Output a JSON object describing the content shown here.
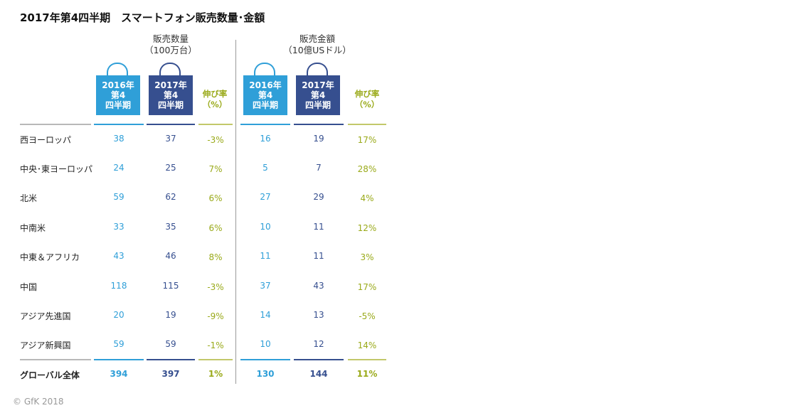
{
  "title": "2017年第4四半期　スマートフォン販売数量･金額",
  "groups": {
    "units": {
      "line1": "販売数量",
      "line2": "（100万台）"
    },
    "value": {
      "line1": "販売金額",
      "line2": "（10億USドル）"
    }
  },
  "bags": {
    "q2016": [
      "2016年",
      "第4",
      "四半期"
    ],
    "q2017": [
      "2017年",
      "第4",
      "四半期"
    ]
  },
  "growth_header": [
    "伸び率",
    "（%）"
  ],
  "colors": {
    "q2016": "#2f9fd8",
    "q2017": "#364f8f",
    "growth": "#9aaa1a",
    "divider": "#9a9a9a"
  },
  "chart_data": {
    "type": "table",
    "title": "2017年第4四半期　スマートフォン販売数量･金額",
    "columns": [
      "販売数量 2016年第4四半期",
      "販売数量 2017年第4四半期",
      "販売数量 伸び率(%)",
      "販売金額 2016年第4四半期",
      "販売金額 2017年第4四半期",
      "販売金額 伸び率(%)"
    ],
    "rows": [
      {
        "region": "西ヨーロッパ",
        "units_2016": "38",
        "units_2017": "37",
        "units_growth": "-3%",
        "value_2016": "16",
        "value_2017": "19",
        "value_growth": "17%"
      },
      {
        "region": "中央･東ヨーロッパ",
        "units_2016": "24",
        "units_2017": "25",
        "units_growth": "7%",
        "value_2016": "5",
        "value_2017": "7",
        "value_growth": "28%"
      },
      {
        "region": "北米",
        "units_2016": "59",
        "units_2017": "62",
        "units_growth": "6%",
        "value_2016": "27",
        "value_2017": "29",
        "value_growth": "4%"
      },
      {
        "region": "中南米",
        "units_2016": "33",
        "units_2017": "35",
        "units_growth": "6%",
        "value_2016": "10",
        "value_2017": "11",
        "value_growth": "12%"
      },
      {
        "region": "中東＆アフリカ",
        "units_2016": "43",
        "units_2017": "46",
        "units_growth": "8%",
        "value_2016": "11",
        "value_2017": "11",
        "value_growth": "3%"
      },
      {
        "region": "中国",
        "units_2016": "118",
        "units_2017": "115",
        "units_growth": "-3%",
        "value_2016": "37",
        "value_2017": "43",
        "value_growth": "17%"
      },
      {
        "region": "アジア先進国",
        "units_2016": "20",
        "units_2017": "19",
        "units_growth": "-9%",
        "value_2016": "14",
        "value_2017": "13",
        "value_growth": "-5%"
      },
      {
        "region": "アジア新興国",
        "units_2016": "59",
        "units_2017": "59",
        "units_growth": "-1%",
        "value_2016": "10",
        "value_2017": "12",
        "value_growth": "14%"
      }
    ],
    "total": {
      "region": "グローバル全体",
      "units_2016": "394",
      "units_2017": "397",
      "units_growth": "1%",
      "value_2016": "130",
      "value_2017": "144",
      "value_growth": "11%"
    }
  },
  "copyright": "© GfK 2018"
}
